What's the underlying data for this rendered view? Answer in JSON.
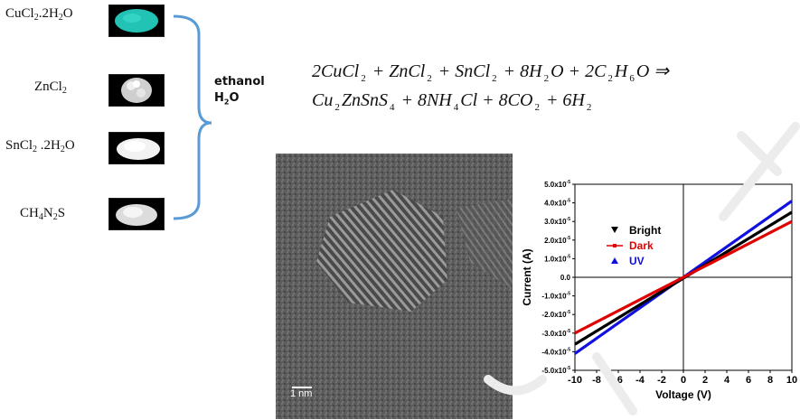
{
  "precursors": [
    {
      "formula": "CuCl",
      "sub1": "2",
      "rest": ".2H",
      "sub2": "2",
      "tail": "O",
      "color": "#22c3b4"
    },
    {
      "formula": "ZnCl",
      "sub1": "2",
      "rest": "",
      "sub2": "",
      "tail": "",
      "color": "#d9d9d9"
    },
    {
      "formula": "SnCl",
      "sub1": "2",
      "rest": " .2H",
      "sub2": "2",
      "tail": "O",
      "color": "#f2f2f2"
    },
    {
      "formula": "CH",
      "sub1": "4",
      "rest": "N",
      "sub2": "2",
      "tail": "S",
      "color": "#dcdcdc"
    }
  ],
  "solvent": {
    "line1": "ethanol",
    "line2_main": "H",
    "line2_sub": "2",
    "line2_tail": "O"
  },
  "equation": {
    "line1": [
      {
        "t": "2CuCl"
      },
      {
        "s": "2"
      },
      {
        "t": " + ZnCl"
      },
      {
        "s": "2"
      },
      {
        "t": " + SnCl"
      },
      {
        "s": "2"
      },
      {
        "t": " + 8H"
      },
      {
        "s": "2"
      },
      {
        "t": "O + 2C"
      },
      {
        "s": "2"
      },
      {
        "t": "H"
      },
      {
        "s": "6"
      },
      {
        "t": "O ⇒"
      }
    ],
    "line2": [
      {
        "t": "Cu"
      },
      {
        "s": "2"
      },
      {
        "t": "ZnSnS"
      },
      {
        "s": "4"
      },
      {
        "t": " + 8NH"
      },
      {
        "s": "4"
      },
      {
        "t": "Cl + 8CO"
      },
      {
        "s": "2"
      },
      {
        "t": " + 6H"
      },
      {
        "s": "2"
      }
    ]
  },
  "tem": {
    "scale_label": "1 nm"
  },
  "chart_data": {
    "type": "line",
    "xlabel": "Voltage (V)",
    "ylabel": "Current (A)",
    "xlim": [
      -10,
      10
    ],
    "ylim": [
      -5e-05,
      5e-05
    ],
    "x_ticks": [
      "-10",
      "-8",
      "-6",
      "-4",
      "-2",
      "0",
      "2",
      "4",
      "6",
      "8",
      "10"
    ],
    "y_ticks": [
      {
        "m": "5.0x10",
        "e": "-5"
      },
      {
        "m": "4.0x10",
        "e": "-5"
      },
      {
        "m": "3.0x10",
        "e": "-5"
      },
      {
        "m": "2.0x10",
        "e": "-5"
      },
      {
        "m": "1.0x10",
        "e": "-5"
      },
      {
        "m": "0.0",
        "e": ""
      },
      {
        "m": "-1.0x10",
        "e": "-5"
      },
      {
        "m": "-2.0x10",
        "e": "-5"
      },
      {
        "m": "-3.0x10",
        "e": "-5"
      },
      {
        "m": "-4.0x10",
        "e": "-5"
      },
      {
        "m": "-5.0x10",
        "e": "-5"
      }
    ],
    "legend_position": "upper-left",
    "series": [
      {
        "name": "Bright",
        "color": "#000000",
        "marker": "triangle-down",
        "x": [
          -10,
          10
        ],
        "y": [
          -3.6e-05,
          3.5e-05
        ]
      },
      {
        "name": "Dark",
        "color": "#e00000",
        "marker": "dash",
        "x": [
          -10,
          10
        ],
        "y": [
          -3e-05,
          3e-05
        ]
      },
      {
        "name": "UV",
        "color": "#1010e0",
        "marker": "triangle-up",
        "x": [
          -10,
          10
        ],
        "y": [
          -4.1e-05,
          4.1e-05
        ]
      }
    ]
  }
}
